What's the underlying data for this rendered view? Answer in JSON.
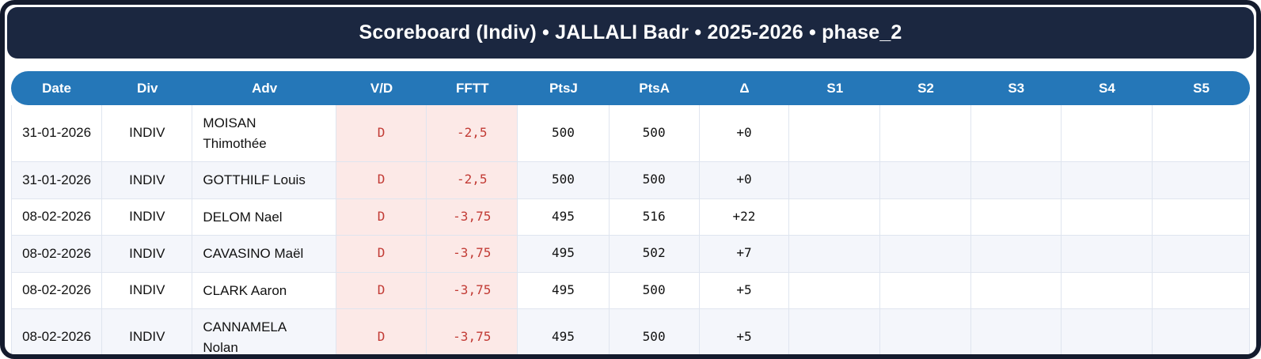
{
  "window": {
    "title_bar": "Scoreboard (Indiv) • JALLALI Badr • 2025-2026 • phase_2"
  },
  "colors": {
    "frame-border": "#141b2d",
    "titlebar-bg": "#1b2740",
    "header-bg": "#2577b8",
    "header-text": "#ffffff",
    "row-alt-bg": "#f4f6fb",
    "cell-border": "#dfe5ef",
    "loss-bg": "#fce9e7",
    "loss-text": "#c23b35",
    "body-text": "#111111"
  },
  "table": {
    "columns": [
      {
        "key": "date",
        "label": "Date"
      },
      {
        "key": "div",
        "label": "Div"
      },
      {
        "key": "adv",
        "label": "Adv"
      },
      {
        "key": "vd",
        "label": "V/D"
      },
      {
        "key": "fftt",
        "label": "FFTT"
      },
      {
        "key": "ptsj",
        "label": "PtsJ"
      },
      {
        "key": "ptsa",
        "label": "PtsA"
      },
      {
        "key": "delta",
        "label": "Δ"
      },
      {
        "key": "s1",
        "label": "S1"
      },
      {
        "key": "s2",
        "label": "S2"
      },
      {
        "key": "s3",
        "label": "S3"
      },
      {
        "key": "s4",
        "label": "S4"
      },
      {
        "key": "s5",
        "label": "S5"
      }
    ],
    "rows": [
      {
        "date": "31-01-2026",
        "div": "INDIV",
        "adv": "MOISAN Thimothée",
        "vd": "D",
        "fftt": "-2,5",
        "ptsj": "500",
        "ptsa": "500",
        "delta": "+0",
        "s1": "",
        "s2": "",
        "s3": "",
        "s4": "",
        "s5": ""
      },
      {
        "date": "31-01-2026",
        "div": "INDIV",
        "adv": "GOTTHILF Louis",
        "vd": "D",
        "fftt": "-2,5",
        "ptsj": "500",
        "ptsa": "500",
        "delta": "+0",
        "s1": "",
        "s2": "",
        "s3": "",
        "s4": "",
        "s5": ""
      },
      {
        "date": "08-02-2026",
        "div": "INDIV",
        "adv": "DELOM Nael",
        "vd": "D",
        "fftt": "-3,75",
        "ptsj": "495",
        "ptsa": "516",
        "delta": "+22",
        "s1": "",
        "s2": "",
        "s3": "",
        "s4": "",
        "s5": ""
      },
      {
        "date": "08-02-2026",
        "div": "INDIV",
        "adv": "CAVASINO Maël",
        "vd": "D",
        "fftt": "-3,75",
        "ptsj": "495",
        "ptsa": "502",
        "delta": "+7",
        "s1": "",
        "s2": "",
        "s3": "",
        "s4": "",
        "s5": ""
      },
      {
        "date": "08-02-2026",
        "div": "INDIV",
        "adv": "CLARK Aaron",
        "vd": "D",
        "fftt": "-3,75",
        "ptsj": "495",
        "ptsa": "500",
        "delta": "+5",
        "s1": "",
        "s2": "",
        "s3": "",
        "s4": "",
        "s5": ""
      },
      {
        "date": "08-02-2026",
        "div": "INDIV",
        "adv": "CANNAMELA Nolan",
        "vd": "D",
        "fftt": "-3,75",
        "ptsj": "495",
        "ptsa": "500",
        "delta": "+5",
        "s1": "",
        "s2": "",
        "s3": "",
        "s4": "",
        "s5": ""
      }
    ]
  }
}
